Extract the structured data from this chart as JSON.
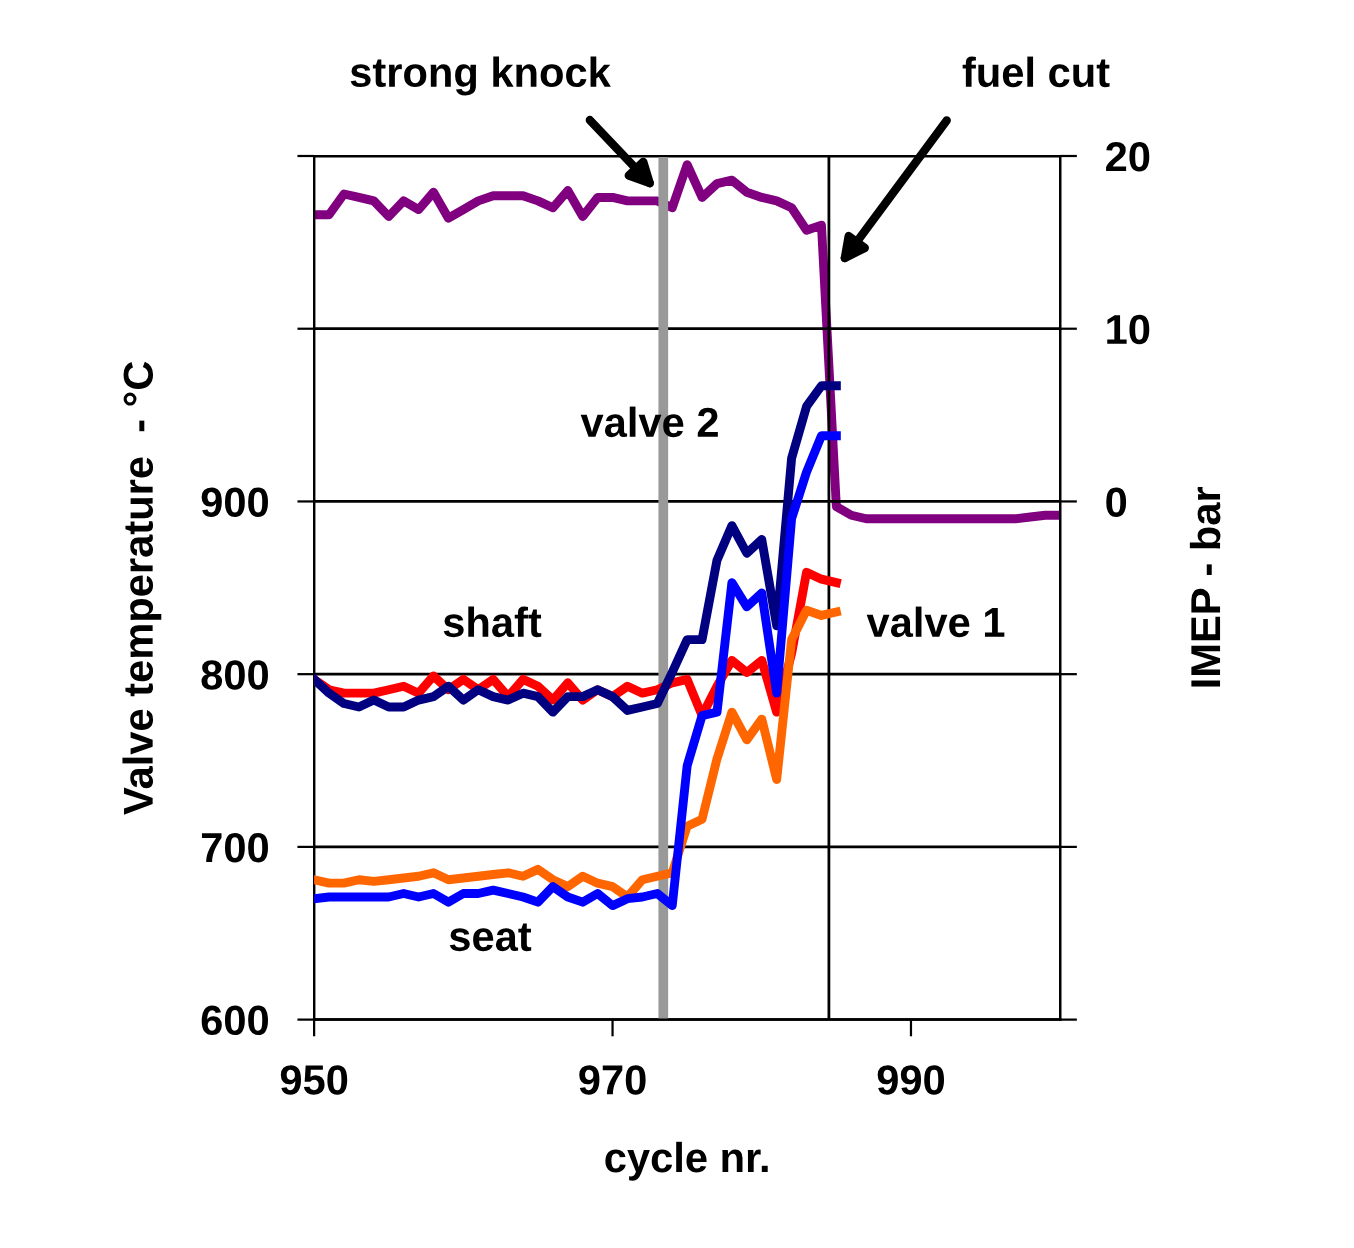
{
  "chart_data": {
    "type": "line",
    "xlabel": "cycle nr.",
    "ylabel": "Valve temperature  - °C",
    "y2label": "IMEP - bar",
    "x": [
      950,
      951,
      952,
      953,
      954,
      955,
      956,
      957,
      958,
      959,
      960,
      961,
      962,
      963,
      964,
      965,
      966,
      967,
      968,
      969,
      970,
      971,
      972,
      973,
      974,
      975,
      976,
      977,
      978,
      979,
      980,
      981,
      982,
      983,
      984,
      985
    ],
    "series": [
      {
        "color": "#ff0000",
        "values": [
          797,
          791,
          789,
          789,
          789,
          791,
          793,
          789,
          799,
          791,
          797,
          791,
          797,
          787,
          797,
          793,
          785,
          795,
          785,
          791,
          787,
          793,
          789,
          791,
          795,
          797,
          776,
          793,
          808,
          801,
          808,
          778,
          812,
          859,
          855,
          853
        ]
      },
      {
        "color": "#ff6600",
        "values": [
          681,
          679,
          679,
          681,
          680,
          681,
          682,
          683,
          685,
          681,
          682,
          683,
          684,
          685,
          683,
          687,
          681,
          677,
          683,
          679,
          677,
          671,
          681,
          683,
          685,
          712,
          716,
          751,
          778,
          762,
          774,
          739,
          820,
          837,
          834,
          836
        ]
      },
      {
        "color": "#000080",
        "values": [
          797,
          789,
          783,
          781,
          785,
          781,
          781,
          785,
          787,
          793,
          785,
          791,
          787,
          785,
          789,
          787,
          778,
          787,
          787,
          791,
          787,
          779,
          781,
          783,
          801,
          820,
          820,
          866,
          886,
          870,
          878,
          828,
          925,
          955,
          967,
          967
        ]
      },
      {
        "color": "#0000ff",
        "values": [
          670,
          671,
          671,
          671,
          671,
          671,
          673,
          671,
          673,
          668,
          673,
          673,
          675,
          673,
          671,
          668,
          677,
          671,
          668,
          673,
          666,
          670,
          671,
          673,
          666,
          747,
          776,
          778,
          853,
          839,
          847,
          789,
          890,
          917,
          938,
          938
        ]
      },
      {
        "color": "#800080",
        "axis": "y2",
        "x": [
          950,
          951,
          952,
          953,
          954,
          955,
          956,
          957,
          958,
          959,
          960,
          961,
          962,
          963,
          964,
          965,
          966,
          967,
          968,
          969,
          970,
          971,
          972,
          973,
          974,
          975,
          976,
          977,
          978,
          979,
          980,
          981,
          982,
          983,
          984,
          985,
          986,
          987,
          988,
          989,
          990,
          991,
          992,
          993,
          994,
          995,
          996,
          997,
          998,
          999,
          1000
        ],
        "values": [
          16.6,
          16.6,
          17.8,
          17.6,
          17.4,
          16.5,
          17.4,
          16.9,
          17.9,
          16.4,
          16.9,
          17.4,
          17.7,
          17.7,
          17.7,
          17.4,
          17.0,
          18.0,
          16.5,
          17.6,
          17.6,
          17.4,
          17.4,
          17.4,
          17.0,
          19.5,
          17.6,
          18.4,
          18.6,
          17.9,
          17.6,
          17.4,
          17.0,
          15.7,
          16.0,
          -0.3,
          -0.8,
          -1.0,
          -1.0,
          -1.0,
          -1.0,
          -1.0,
          -1.0,
          -1.0,
          -1.0,
          -1.0,
          -1.0,
          -1.0,
          -0.9,
          -0.8,
          -0.8
        ]
      }
    ],
    "xlim": [
      950,
      1000
    ],
    "xticks": [
      950,
      970,
      990
    ],
    "ylim": [
      600,
      1100
    ],
    "yticks": [
      600,
      700,
      800,
      900,
      {
        "value": 1000,
        "label": null
      },
      {
        "value": 1100,
        "label": null
      }
    ],
    "y2lim": [
      -30,
      20
    ],
    "y2ticks": [
      {
        "value": -30,
        "label": null
      },
      {
        "value": -20,
        "label": null
      },
      {
        "value": -10,
        "label": null
      },
      0,
      10,
      20
    ],
    "grid": "y",
    "marker": "none",
    "line_style": "solid",
    "ref_lines": [
      {
        "axis": "x",
        "value": 973.4,
        "color": "#999999"
      },
      {
        "axis": "x",
        "value": 984.5,
        "color": "#000000"
      }
    ],
    "annotations": [
      "strong knock",
      "fuel cut",
      "valve 2",
      "shaft",
      "valve 1",
      "seat"
    ]
  }
}
